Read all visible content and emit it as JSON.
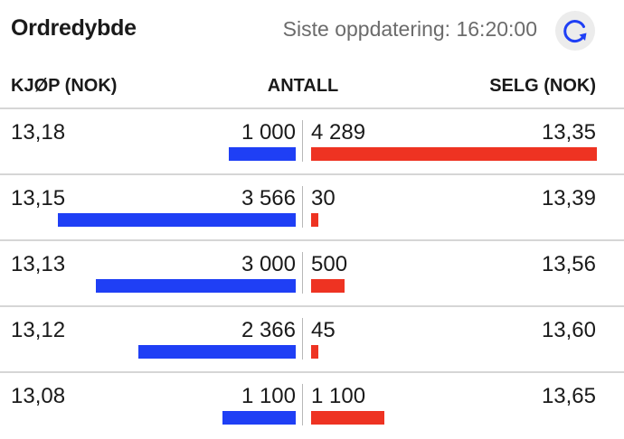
{
  "header": {
    "title": "Ordredybde",
    "last_update": "Siste oppdatering: 16:20:00",
    "refresh_icon": "refresh-icon"
  },
  "columns": {
    "buy": "KJØP (NOK)",
    "quantity": "ANTALL",
    "sell": "SELG (NOK)"
  },
  "colors": {
    "buy_bar": "#1f3ff5",
    "sell_bar": "#ee3322"
  },
  "rows": [
    {
      "buy_price": "13,18",
      "buy_qty": "1 000",
      "sell_qty": "4 289",
      "sell_price": "13,35",
      "buy_amount": 1000,
      "sell_amount": 4289
    },
    {
      "buy_price": "13,15",
      "buy_qty": "3 566",
      "sell_qty": "30",
      "sell_price": "13,39",
      "buy_amount": 3566,
      "sell_amount": 30
    },
    {
      "buy_price": "13,13",
      "buy_qty": "3 000",
      "sell_qty": "500",
      "sell_price": "13,56",
      "buy_amount": 3000,
      "sell_amount": 500
    },
    {
      "buy_price": "13,12",
      "buy_qty": "2 366",
      "sell_qty": "45",
      "sell_price": "13,60",
      "buy_amount": 2366,
      "sell_amount": 45
    },
    {
      "buy_price": "13,08",
      "buy_qty": "1 100",
      "sell_qty": "1 100",
      "sell_price": "13,65",
      "buy_amount": 1100,
      "sell_amount": 1100
    }
  ]
}
